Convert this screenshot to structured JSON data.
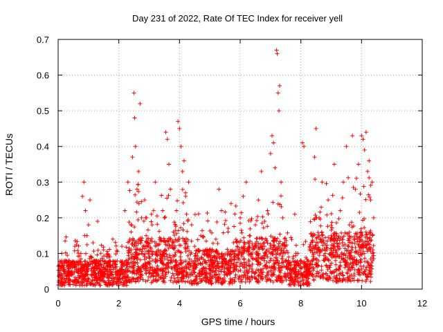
{
  "chart_data": {
    "type": "scatter",
    "title": "Day 231 of 2022, Rate Of TEC Index for receiver yell",
    "xlabel": "GPS time / hours",
    "ylabel": "ROTI / TECUs",
    "xlim": [
      0,
      12
    ],
    "ylim": [
      0,
      0.7
    ],
    "xticks": [
      0,
      2,
      4,
      6,
      8,
      10,
      12
    ],
    "yticks": [
      0,
      0.1,
      0.2,
      0.3,
      0.4,
      0.5,
      0.6,
      0.7
    ],
    "xtick_labels": [
      "0",
      "2",
      "4",
      "6",
      "8",
      "10",
      "12"
    ],
    "ytick_labels": [
      "0",
      "0.1",
      "0.2",
      "0.3",
      "0.4",
      "0.5",
      "0.6",
      "0.7"
    ],
    "grid": true,
    "marker": "+",
    "color": "#ff0000",
    "series": [
      {
        "name": "ROTI",
        "x": [
          0.05,
          0.12,
          0.2,
          0.28,
          0.35,
          0.45,
          0.55,
          0.65,
          0.75,
          0.8,
          0.85,
          0.9,
          0.95,
          1.0,
          1.05,
          1.1,
          1.15,
          1.2,
          1.3,
          1.4,
          1.5,
          1.6,
          1.7,
          1.8,
          1.9,
          2.0,
          2.1,
          2.2,
          2.3,
          2.4,
          2.45,
          2.5,
          2.52,
          2.55,
          2.6,
          2.65,
          2.7,
          2.75,
          2.8,
          2.85,
          2.9,
          3.0,
          3.1,
          3.2,
          3.3,
          3.4,
          3.5,
          3.55,
          3.6,
          3.65,
          3.7,
          3.8,
          3.9,
          3.95,
          4.0,
          4.05,
          4.1,
          4.15,
          4.2,
          4.3,
          4.4,
          4.5,
          4.6,
          4.7,
          4.8,
          4.9,
          5.0,
          5.1,
          5.2,
          5.3,
          5.4,
          5.5,
          5.6,
          5.7,
          5.8,
          5.9,
          6.0,
          6.1,
          6.2,
          6.3,
          6.4,
          6.5,
          6.6,
          6.7,
          6.8,
          6.9,
          7.0,
          7.05,
          7.1,
          7.15,
          7.2,
          7.22,
          7.25,
          7.28,
          7.3,
          7.35,
          7.4,
          7.5,
          7.6,
          7.7,
          7.8,
          7.9,
          8.0,
          8.05,
          8.1,
          8.2,
          8.3,
          8.4,
          8.45,
          8.5,
          8.6,
          8.7,
          8.8,
          8.9,
          9.0,
          9.1,
          9.2,
          9.3,
          9.4,
          9.5,
          9.6,
          9.7,
          9.8,
          9.9,
          10.0,
          10.05,
          10.1,
          10.15,
          10.2,
          10.25,
          10.3,
          10.35,
          10.4
        ],
        "y": [
          0.04,
          0.1,
          0.06,
          0.03,
          0.08,
          0.05,
          0.12,
          0.07,
          0.1,
          0.26,
          0.3,
          0.22,
          0.15,
          0.18,
          0.25,
          0.09,
          0.13,
          0.06,
          0.19,
          0.08,
          0.11,
          0.05,
          0.09,
          0.14,
          0.07,
          0.05,
          0.12,
          0.22,
          0.3,
          0.18,
          0.37,
          0.55,
          0.48,
          0.4,
          0.28,
          0.33,
          0.52,
          0.2,
          0.12,
          0.25,
          0.15,
          0.09,
          0.18,
          0.3,
          0.11,
          0.08,
          0.2,
          0.44,
          0.42,
          0.35,
          0.28,
          0.16,
          0.22,
          0.47,
          0.45,
          0.4,
          0.33,
          0.36,
          0.27,
          0.3,
          0.18,
          0.12,
          0.08,
          0.15,
          0.06,
          0.1,
          0.09,
          0.05,
          0.14,
          0.28,
          0.1,
          0.07,
          0.16,
          0.24,
          0.09,
          0.12,
          0.2,
          0.26,
          0.3,
          0.15,
          0.07,
          0.18,
          0.25,
          0.33,
          0.12,
          0.22,
          0.38,
          0.43,
          0.41,
          0.34,
          0.67,
          0.66,
          0.55,
          0.5,
          0.57,
          0.3,
          0.2,
          0.12,
          0.09,
          0.05,
          0.21,
          0.1,
          0.08,
          0.41,
          0.4,
          0.06,
          0.12,
          0.15,
          0.37,
          0.45,
          0.2,
          0.3,
          0.1,
          0.25,
          0.15,
          0.35,
          0.12,
          0.22,
          0.3,
          0.4,
          0.18,
          0.43,
          0.28,
          0.35,
          0.43,
          0.42,
          0.39,
          0.44,
          0.33,
          0.36,
          0.25,
          0.3,
          0.2
        ],
        "noise_seed": 231,
        "noise_count": 2600
      }
    ]
  }
}
